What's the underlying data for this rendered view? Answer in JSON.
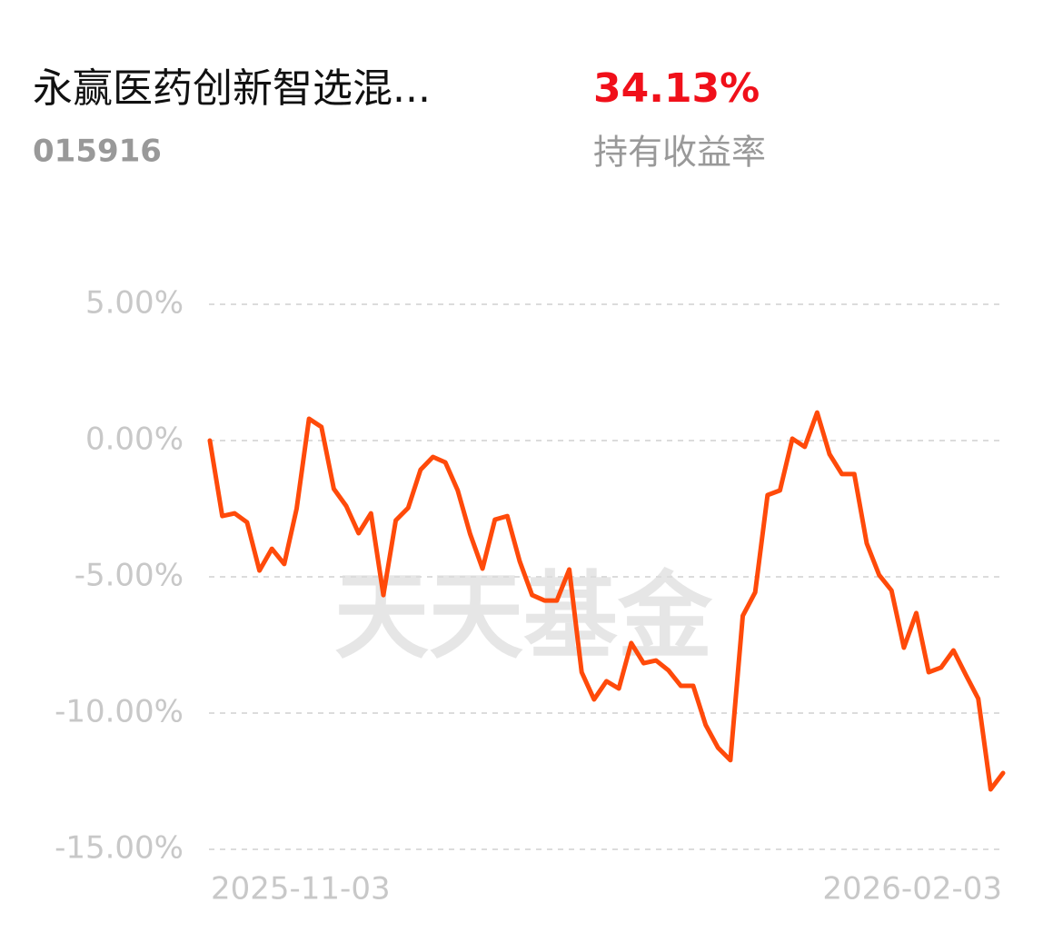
{
  "header": {
    "fund_name": "永赢医药创新智选混...",
    "fund_code": "015916",
    "return": "34.13%",
    "return_label": "持有收益率"
  },
  "chart_data": {
    "type": "line",
    "watermark": "天天基金",
    "categories": [
      "2025-11-03",
      null,
      null,
      null,
      null,
      null,
      null,
      null,
      null,
      null,
      null,
      null,
      null,
      null,
      null,
      null,
      null,
      null,
      null,
      null,
      null,
      null,
      null,
      null,
      null,
      null,
      null,
      null,
      null,
      null,
      null,
      null,
      null,
      null,
      null,
      null,
      null,
      null,
      null,
      null,
      null,
      null,
      null,
      null,
      null,
      null,
      null,
      null,
      null,
      null,
      null,
      null,
      null,
      null,
      null,
      null,
      null,
      null,
      null,
      null,
      null,
      null,
      null,
      null,
      "2026-02-03"
    ],
    "series": [
      {
        "color": "#ff4a0a",
        "values": [
          0.0,
          -2.77,
          -2.67,
          -3.0,
          -4.77,
          -3.97,
          -4.53,
          -2.5,
          0.8,
          0.5,
          -1.77,
          -2.4,
          -3.4,
          -2.67,
          -5.67,
          -2.93,
          -2.47,
          -1.07,
          -0.6,
          -0.8,
          -1.83,
          -3.43,
          -4.7,
          -2.9,
          -2.77,
          -4.43,
          -5.67,
          -5.87,
          -5.87,
          -4.73,
          -8.5,
          -9.5,
          -8.83,
          -9.1,
          -7.43,
          -8.17,
          -8.07,
          -8.43,
          -9.0,
          -9.0,
          -10.43,
          -11.27,
          -11.73,
          -6.43,
          -5.57,
          -2.0,
          -1.83,
          0.07,
          -0.23,
          1.03,
          -0.5,
          -1.23,
          -1.23,
          -3.77,
          -4.93,
          -5.5,
          -7.6,
          -6.33,
          -8.5,
          -8.33,
          -7.7,
          -8.6,
          -9.47,
          -12.8,
          -12.2
        ]
      }
    ],
    "ylim": [
      -15,
      5
    ],
    "yticks": [
      {
        "value": 5,
        "label": "5.00%"
      },
      {
        "value": 0,
        "label": "0.00%"
      },
      {
        "value": -5,
        "label": "-5.00%"
      },
      {
        "value": -10,
        "label": "-10.00%"
      },
      {
        "value": -15,
        "label": "-15.00%"
      }
    ],
    "grid": true
  }
}
